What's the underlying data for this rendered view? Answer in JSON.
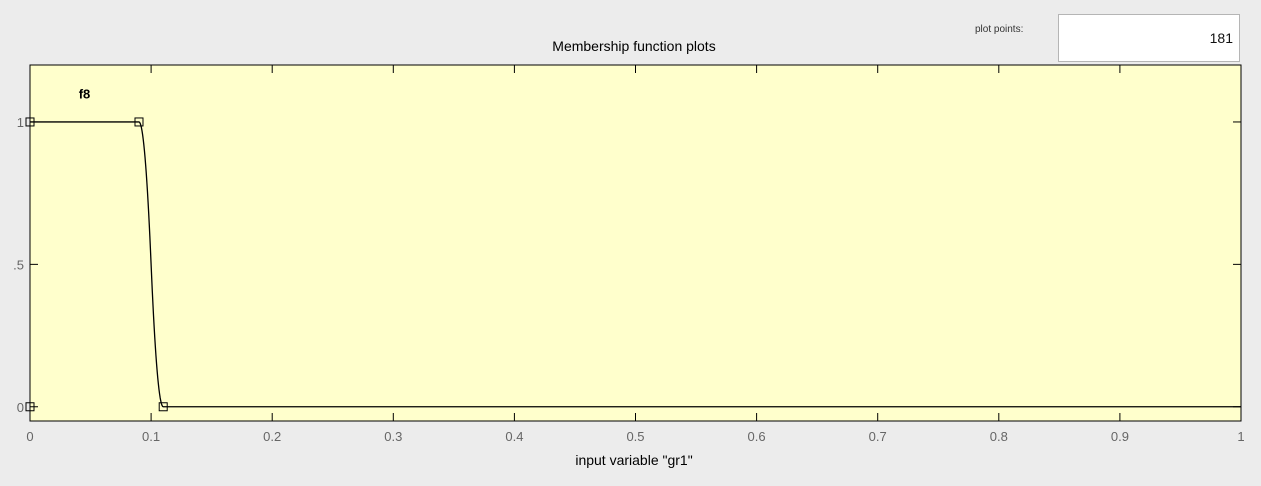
{
  "controls": {
    "plot_points_label": "plot points:",
    "plot_points_value": "181"
  },
  "chart_data": {
    "type": "line",
    "title": "Membership function plots",
    "xlabel": "input variable \"gr1\"",
    "ylabel": "",
    "xlim": [
      0,
      1
    ],
    "ylim": [
      -0.05,
      1.2
    ],
    "x_ticks": [
      {
        "value": 0,
        "label": "0"
      },
      {
        "value": 0.1,
        "label": "0.1"
      },
      {
        "value": 0.2,
        "label": "0.2"
      },
      {
        "value": 0.3,
        "label": "0.3"
      },
      {
        "value": 0.4,
        "label": "0.4"
      },
      {
        "value": 0.5,
        "label": "0.5"
      },
      {
        "value": 0.6,
        "label": "0.6"
      },
      {
        "value": 0.7,
        "label": "0.7"
      },
      {
        "value": 0.8,
        "label": "0.8"
      },
      {
        "value": 0.9,
        "label": "0.9"
      },
      {
        "value": 1,
        "label": "1"
      }
    ],
    "y_ticks": [
      {
        "value": 0,
        "label": "0"
      },
      {
        "value": 0.5,
        "label": ".5"
      },
      {
        "value": 1,
        "label": "1"
      }
    ],
    "grid": false,
    "background": "#ffffcc",
    "line_color": "#000000",
    "series": [
      {
        "name": "f8",
        "shape": "zmf",
        "params": [
          0.09,
          0.11
        ],
        "control_points": [
          {
            "x": 0,
            "y": 1
          },
          {
            "x": 0.09,
            "y": 1
          },
          {
            "x": 0.11,
            "y": 0
          },
          {
            "x": 1,
            "y": 0
          }
        ],
        "label_position": {
          "x": 0.045,
          "y": 1.1
        }
      }
    ],
    "handles": [
      {
        "x": 0,
        "y": 1
      },
      {
        "x": 0.09,
        "y": 1
      },
      {
        "x": 0.11,
        "y": 0
      },
      {
        "x": 0,
        "y": 0
      }
    ]
  }
}
